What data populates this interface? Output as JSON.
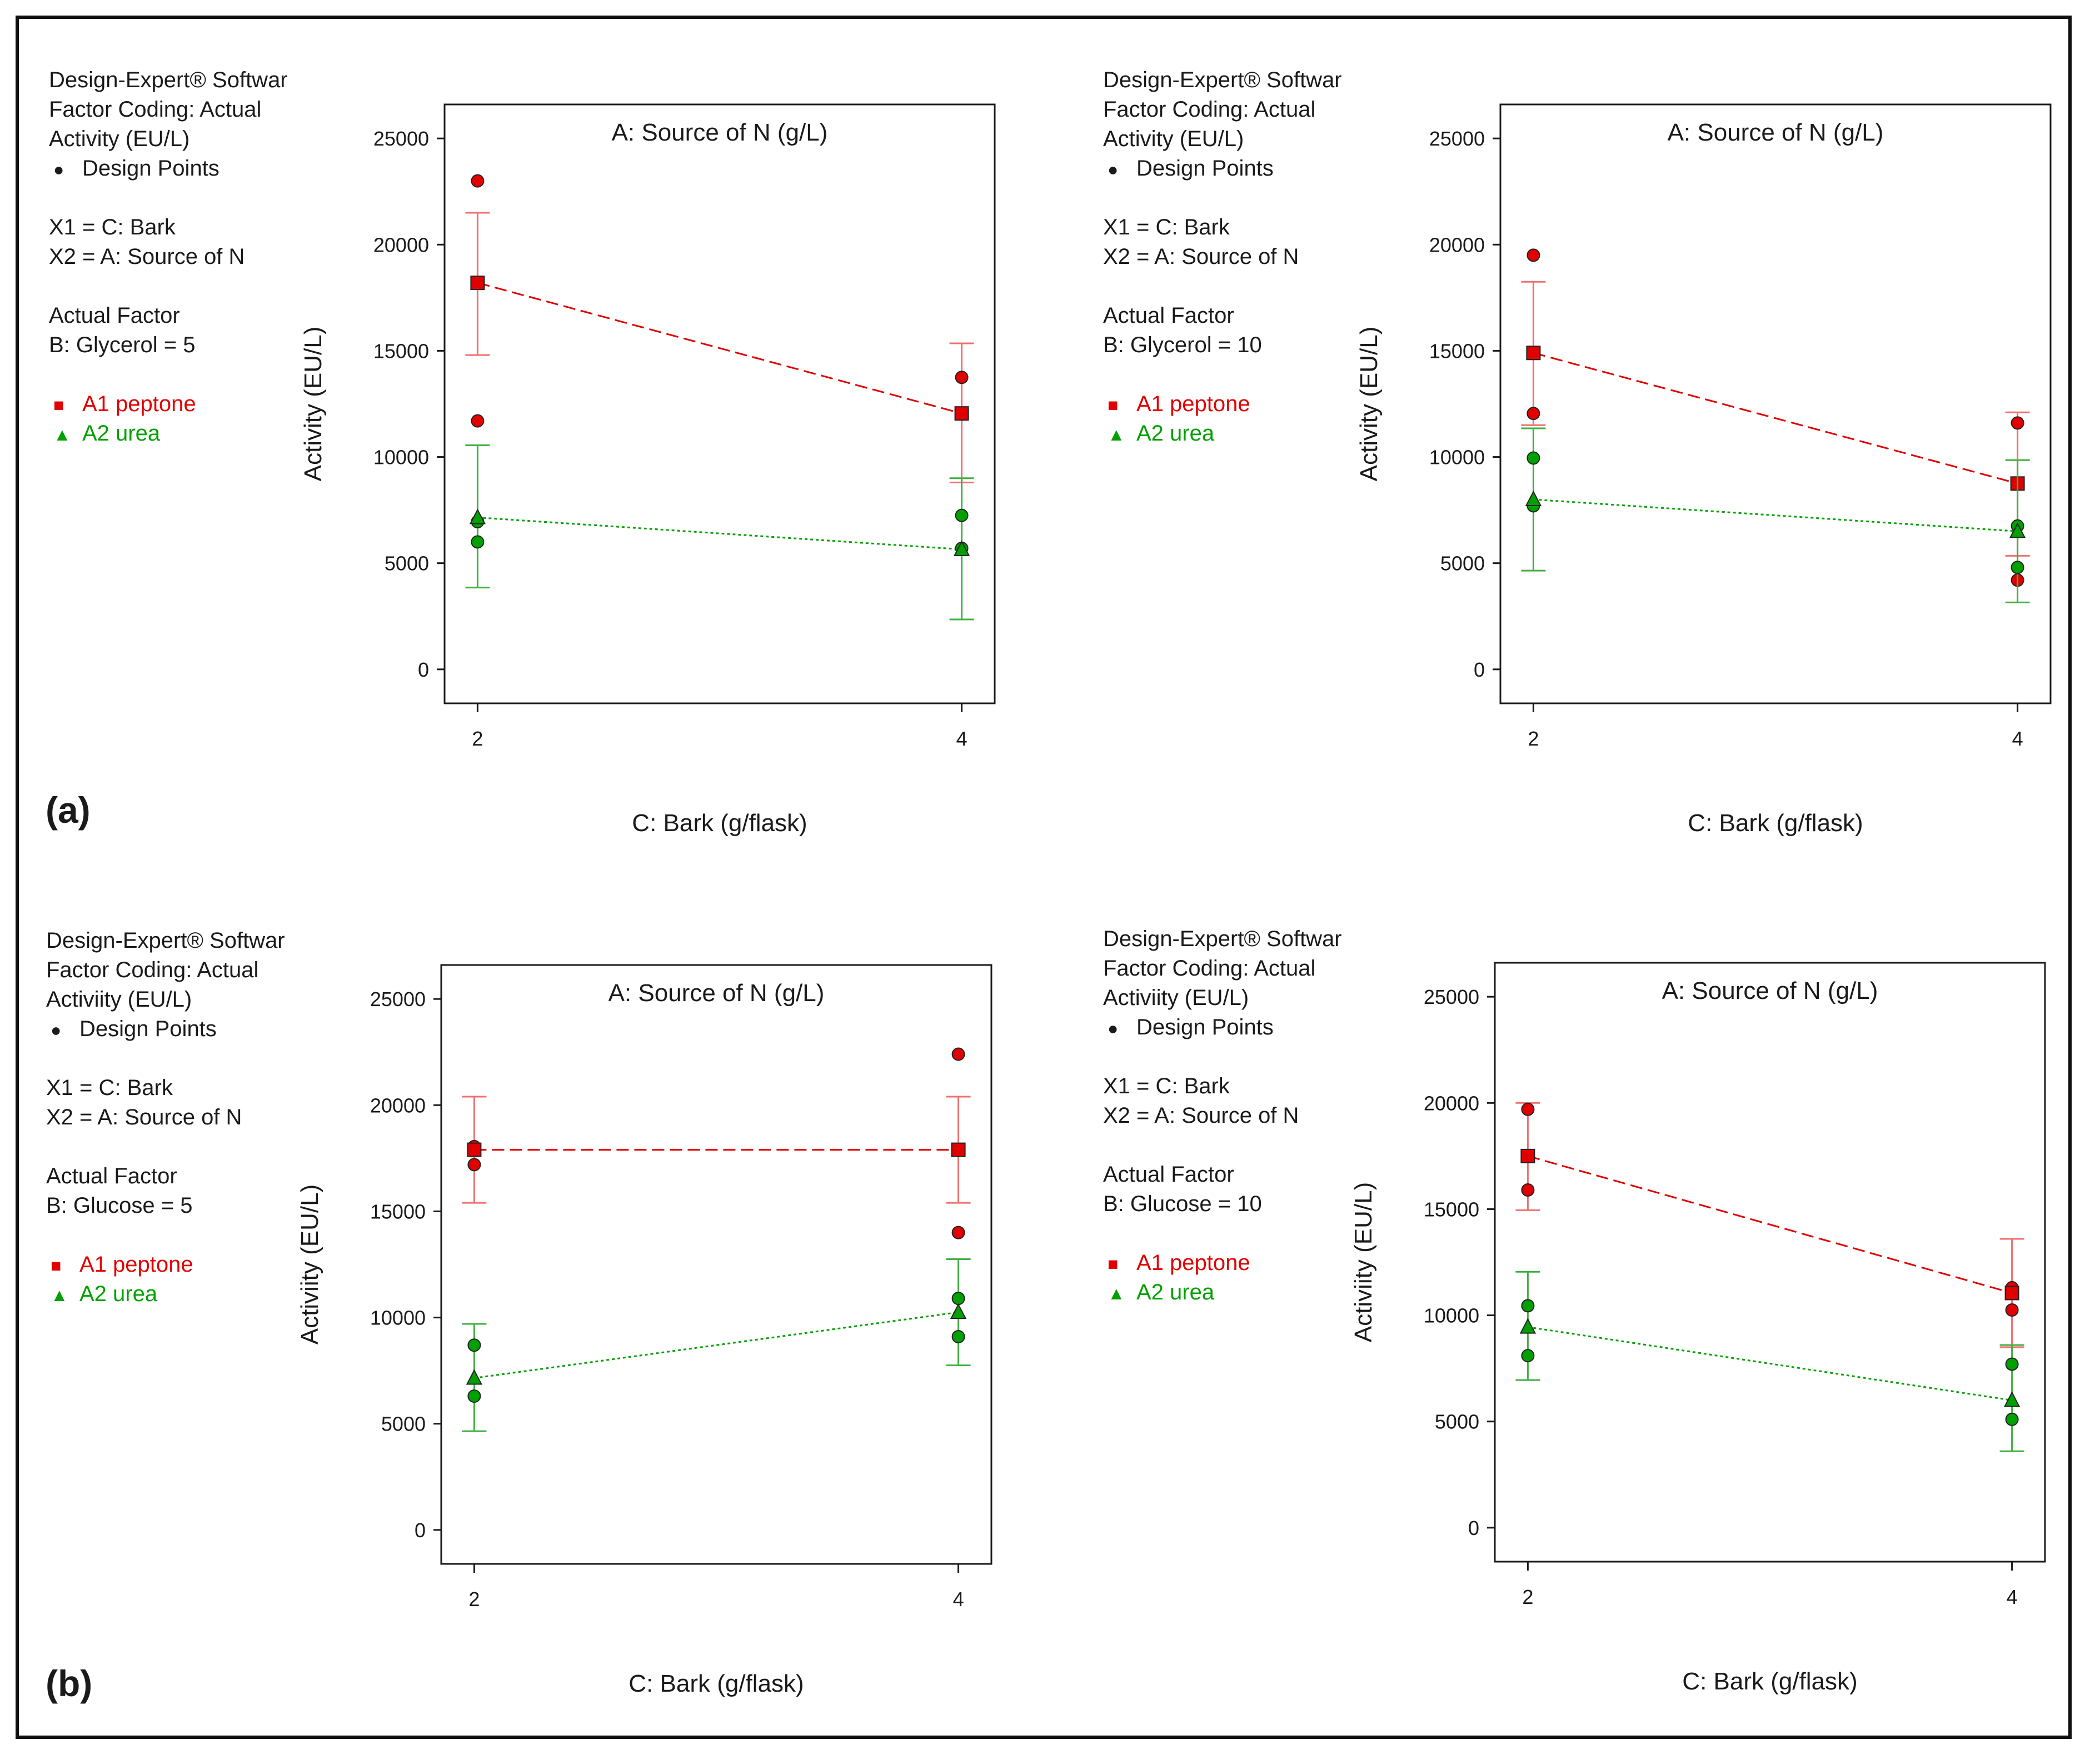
{
  "figure": {
    "panel_labels": [
      "(a)",
      "(b)"
    ]
  },
  "legend_common": {
    "software": "Design-Expert® Software",
    "coding": "Factor Coding: Actual",
    "design_points": "Design Points",
    "x1": "X1 = C: Bark",
    "x2": "X2 = A: Source of N",
    "actual_factor": "Actual Factor",
    "peptone": "A1 peptone",
    "urea": "A2 urea"
  },
  "panels": [
    {
      "response": "Activity (EU/L)",
      "factor_value": "B: Glycerol = 5"
    },
    {
      "response": "Activity (EU/L)",
      "factor_value": "B: Glycerol = 10"
    },
    {
      "response": "Activiity (EU/L)",
      "factor_value": "B: Glucose = 5"
    },
    {
      "response": "Activiity (EU/L)",
      "factor_value": "B: Glucose = 10"
    }
  ],
  "colors": {
    "peptone": "#e00000",
    "peptone_bar": "#f07070",
    "urea": "#00a000",
    "urea_bar": "#40b040",
    "axis": "#1a1a1a"
  },
  "chart_data": [
    {
      "type": "line",
      "title": "A: Source of N (g/L)",
      "xlabel": "C: Bark (g/flask)",
      "ylabel": "Activity (EU/L)",
      "x": [
        2,
        4
      ],
      "x_ticks": [
        "2",
        "4"
      ],
      "y_ticks": [
        "0",
        "5000",
        "10000",
        "15000",
        "20000",
        "25000"
      ],
      "ylim": [
        -1600,
        26600
      ],
      "series": [
        {
          "name": "A1 peptone",
          "values": [
            18200,
            12050
          ],
          "lower": [
            14800,
            8800
          ],
          "upper": [
            21500,
            15350
          ],
          "points": [
            {
              "x": 2,
              "y": 23000
            },
            {
              "x": 2,
              "y": 11700
            },
            {
              "x": 4,
              "y": 13750
            }
          ]
        },
        {
          "name": "A2 urea",
          "values": [
            7150,
            5650
          ],
          "lower": [
            3850,
            2350
          ],
          "upper": [
            10550,
            9000
          ],
          "points": [
            {
              "x": 2,
              "y": 6950
            },
            {
              "x": 2,
              "y": 6000
            },
            {
              "x": 4,
              "y": 7250
            },
            {
              "x": 4,
              "y": 5700
            }
          ]
        }
      ]
    },
    {
      "type": "line",
      "title": "A: Source of N (g/L)",
      "xlabel": "C: Bark (g/flask)",
      "ylabel": "Activity (EU/L)",
      "x": [
        2,
        4
      ],
      "x_ticks": [
        "2",
        "4"
      ],
      "y_ticks": [
        "0",
        "5000",
        "10000",
        "15000",
        "20000",
        "25000"
      ],
      "ylim": [
        -1600,
        26600
      ],
      "series": [
        {
          "name": "A1 peptone",
          "values": [
            14900,
            8750
          ],
          "lower": [
            11500,
            5350
          ],
          "upper": [
            18250,
            12100
          ],
          "points": [
            {
              "x": 2,
              "y": 19500
            },
            {
              "x": 2,
              "y": 12050
            },
            {
              "x": 4,
              "y": 11600
            },
            {
              "x": 4,
              "y": 4200
            }
          ]
        },
        {
          "name": "A2 urea",
          "values": [
            8000,
            6500
          ],
          "lower": [
            4650,
            3150
          ],
          "upper": [
            11350,
            9850
          ],
          "points": [
            {
              "x": 2,
              "y": 9950
            },
            {
              "x": 2,
              "y": 7700
            },
            {
              "x": 4,
              "y": 6750
            },
            {
              "x": 4,
              "y": 4800
            }
          ]
        }
      ]
    },
    {
      "type": "line",
      "title": "A: Source of N (g/L)",
      "xlabel": "C: Bark (g/flask)",
      "ylabel": "Activiity (EU/L)",
      "x": [
        2,
        4
      ],
      "x_ticks": [
        "2",
        "4"
      ],
      "y_ticks": [
        "0",
        "5000",
        "10000",
        "15000",
        "20000",
        "25000"
      ],
      "ylim": [
        -1600,
        26600
      ],
      "series": [
        {
          "name": "A1 peptone",
          "values": [
            17900,
            17900
          ],
          "lower": [
            15400,
            15400
          ],
          "upper": [
            20400,
            20400
          ],
          "points": [
            {
              "x": 2,
              "y": 18050
            },
            {
              "x": 2,
              "y": 17200
            },
            {
              "x": 4,
              "y": 22400
            },
            {
              "x": 4,
              "y": 14000
            }
          ]
        },
        {
          "name": "A2 urea",
          "values": [
            7150,
            10250
          ],
          "lower": [
            4650,
            7750
          ],
          "upper": [
            9700,
            12750
          ],
          "points": [
            {
              "x": 2,
              "y": 8700
            },
            {
              "x": 2,
              "y": 6300
            },
            {
              "x": 4,
              "y": 10900
            },
            {
              "x": 4,
              "y": 9100
            }
          ]
        }
      ]
    },
    {
      "type": "line",
      "title": "A: Source of N (g/L)",
      "xlabel": "C: Bark (g/flask)",
      "ylabel": "Activiity (EU/L)",
      "x": [
        2,
        4
      ],
      "x_ticks": [
        "2",
        "4"
      ],
      "y_ticks": [
        "0",
        "5000",
        "10000",
        "15000",
        "20000",
        "25000"
      ],
      "ylim": [
        -1600,
        26600
      ],
      "series": [
        {
          "name": "A1 peptone",
          "values": [
            17500,
            11050
          ],
          "lower": [
            14950,
            8500
          ],
          "upper": [
            20000,
            13600
          ],
          "points": [
            {
              "x": 2,
              "y": 19700
            },
            {
              "x": 2,
              "y": 15900
            },
            {
              "x": 4,
              "y": 11300
            },
            {
              "x": 4,
              "y": 10250
            }
          ]
        },
        {
          "name": "A2 urea",
          "values": [
            9450,
            6000
          ],
          "lower": [
            6950,
            3600
          ],
          "upper": [
            12050,
            8600
          ],
          "points": [
            {
              "x": 2,
              "y": 10450
            },
            {
              "x": 2,
              "y": 8100
            },
            {
              "x": 4,
              "y": 7700
            },
            {
              "x": 4,
              "y": 5100
            }
          ]
        }
      ]
    }
  ]
}
